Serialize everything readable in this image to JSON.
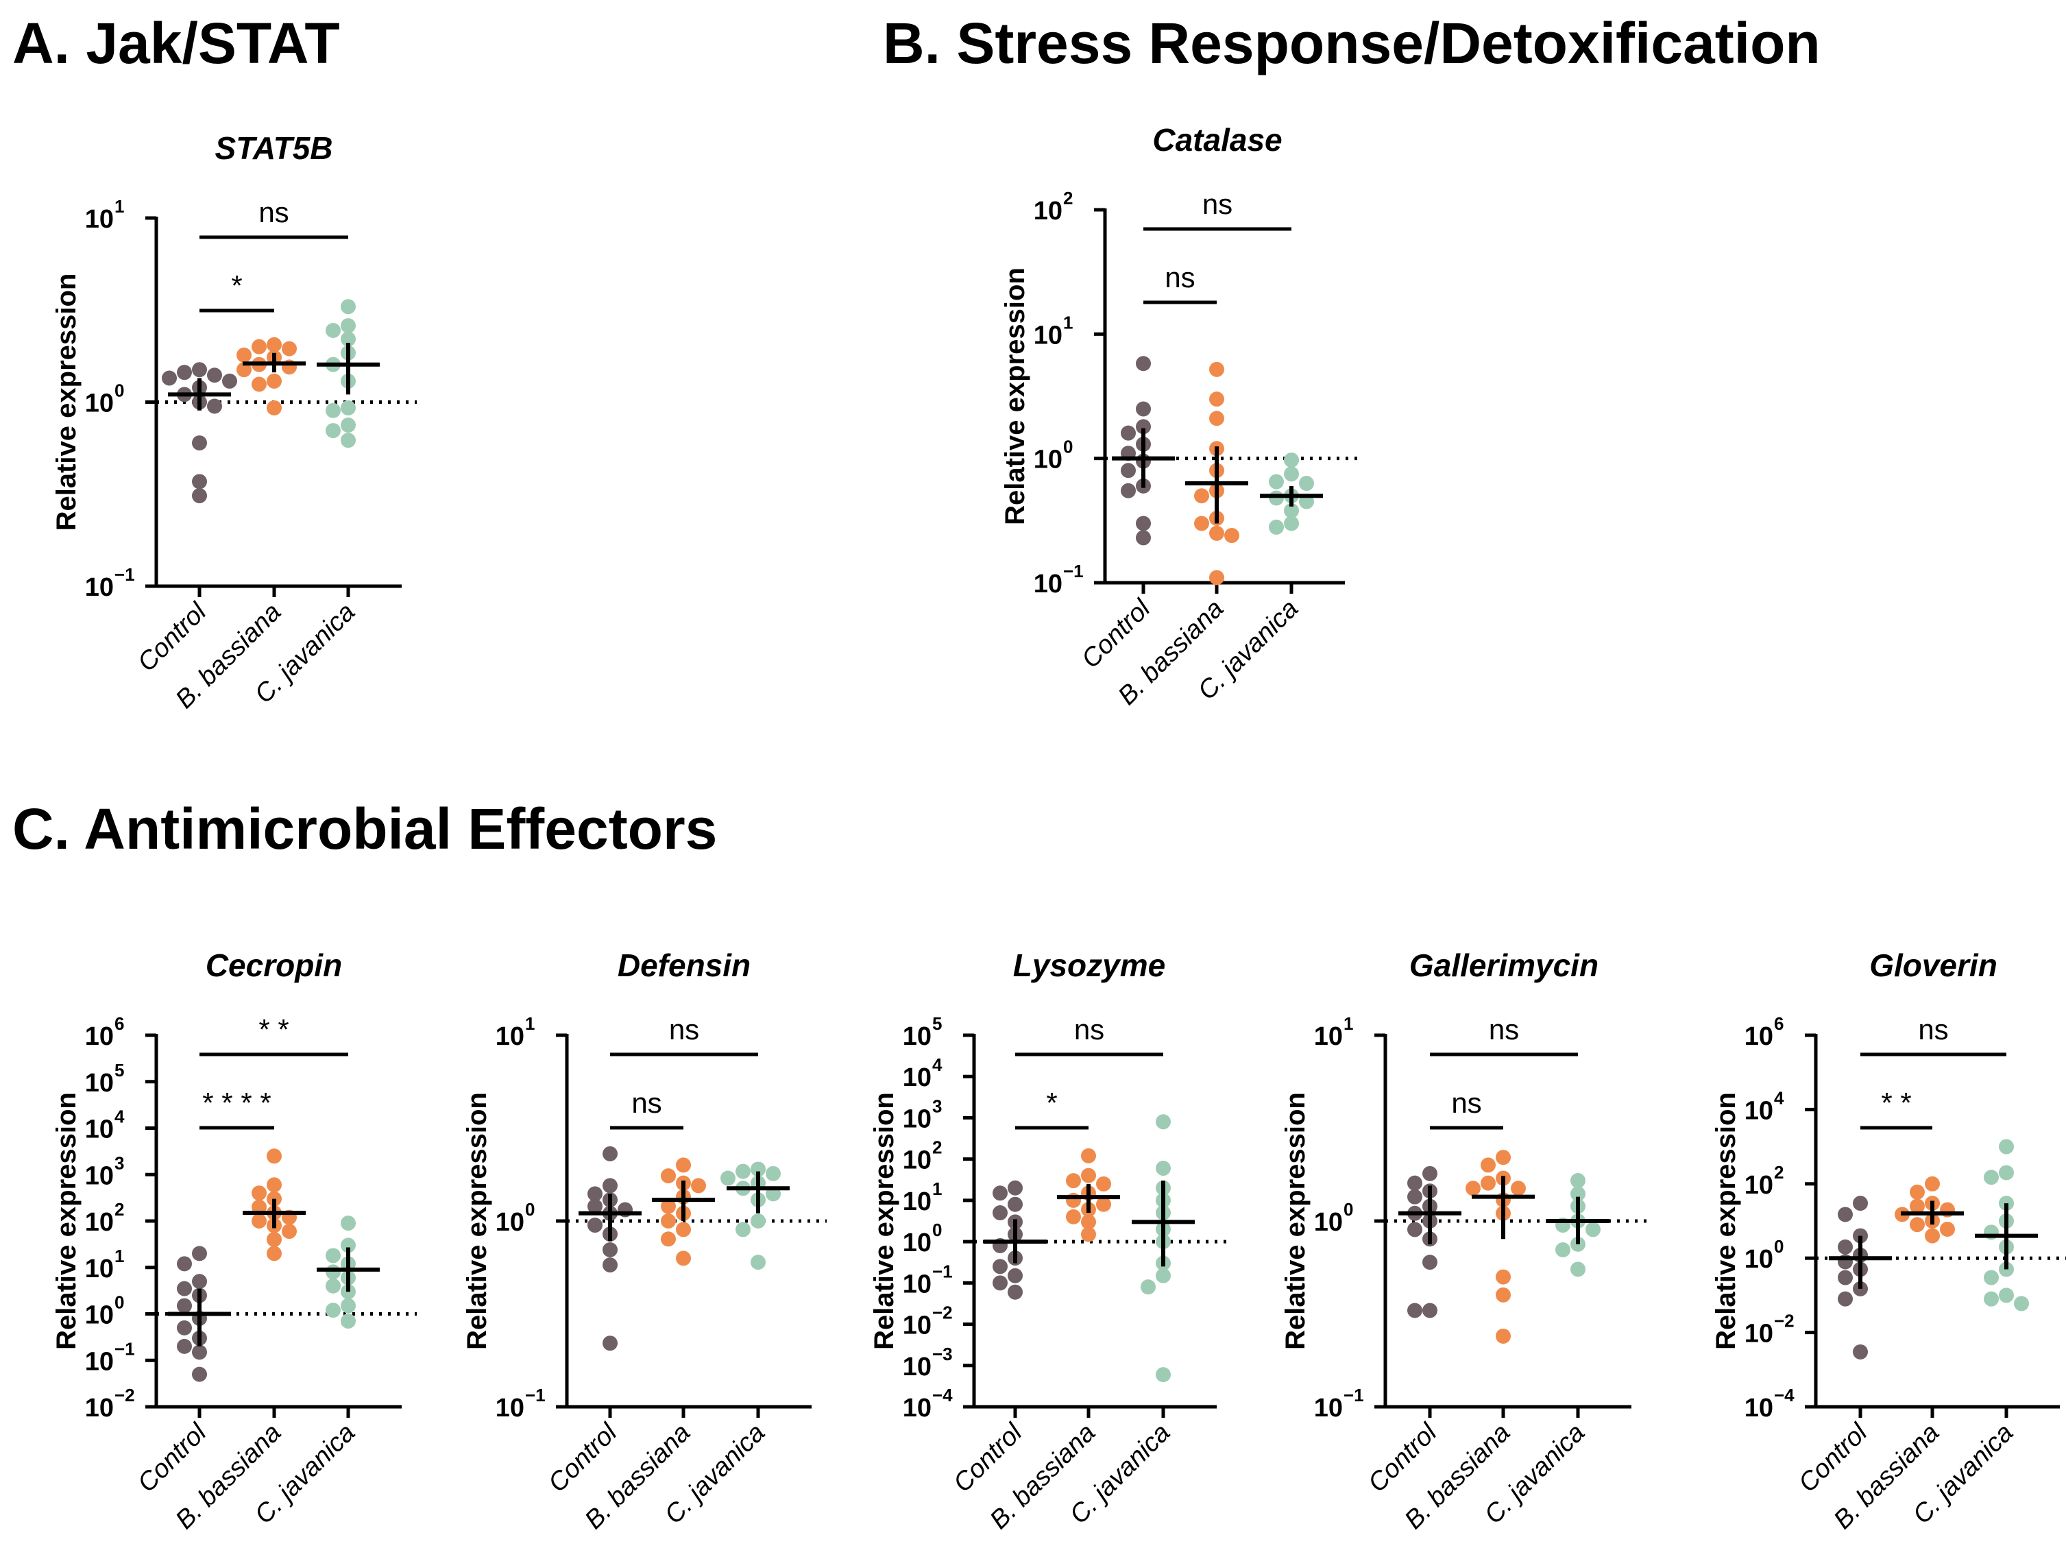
{
  "sections": {
    "a": "A. Jak/STAT",
    "b": "B. Stress Response/Detoxification",
    "c": "C.  Antimicrobial Effectors"
  },
  "colors": {
    "control": "#6e6065",
    "b_bassiana": "#f08a4b",
    "c_javanica": "#9ecbb4",
    "axis": "#000000"
  },
  "chart_data": [
    {
      "type": "scatter",
      "scale": "log",
      "title": "STAT5B",
      "ylabel": "Relative expression",
      "ylim_exp": [
        -1,
        1
      ],
      "categories": [
        "Control",
        "B. bassiana",
        "C. javanica"
      ],
      "tick_labels": [
        [
          "-1",
          "10",
          "−1"
        ],
        [
          "0",
          "10",
          "0"
        ],
        [
          "1",
          "10",
          "1"
        ]
      ],
      "groups": [
        {
          "points": [
            1.5,
            1.45,
            1.4,
            1.35,
            1.3,
            1.2,
            1.1,
            1.0,
            0.95,
            0.6,
            0.37,
            0.31
          ],
          "mean": 1.1,
          "err": [
            0.9,
            1.35
          ]
        },
        {
          "points": [
            2.05,
            2.0,
            1.95,
            1.8,
            1.75,
            1.6,
            1.55,
            1.5,
            1.3,
            1.25,
            0.93
          ],
          "mean": 1.62,
          "err": [
            1.45,
            1.85
          ]
        },
        {
          "points": [
            3.3,
            2.6,
            2.45,
            2.2,
            1.85,
            1.6,
            1.3,
            0.93,
            0.9,
            0.75,
            0.7,
            0.62
          ],
          "mean": 1.6,
          "err": [
            1.1,
            2.1
          ]
        }
      ],
      "comparisons": [
        {
          "label": "*",
          "from": 0,
          "to": 1,
          "level": 1
        },
        {
          "label": "ns",
          "from": 0,
          "to": 2,
          "level": 2
        }
      ]
    },
    {
      "type": "scatter",
      "scale": "log",
      "title": "Catalase",
      "ylabel": "Relative expression",
      "ylim_exp": [
        -1,
        2
      ],
      "categories": [
        "Control",
        "B. bassiana",
        "C. javanica"
      ],
      "tick_labels": [
        [
          "-1",
          "10",
          "−1"
        ],
        [
          "0",
          "10",
          "0"
        ],
        [
          "1",
          "10",
          "1"
        ],
        [
          "2",
          "10",
          "2"
        ]
      ],
      "groups": [
        {
          "points": [
            5.8,
            2.5,
            1.8,
            1.6,
            1.3,
            1.1,
            0.95,
            0.8,
            0.6,
            0.55,
            0.3,
            0.23
          ],
          "mean": 1.0,
          "err": [
            0.58,
            1.75
          ]
        },
        {
          "points": [
            5.2,
            3.0,
            2.1,
            1.2,
            0.8,
            0.55,
            0.5,
            0.33,
            0.3,
            0.25,
            0.24,
            0.11
          ],
          "mean": 0.63,
          "err": [
            0.3,
            1.25
          ]
        },
        {
          "points": [
            0.97,
            0.75,
            0.65,
            0.63,
            0.5,
            0.48,
            0.45,
            0.38,
            0.3,
            0.28
          ],
          "mean": 0.5,
          "err": [
            0.41,
            0.6
          ]
        }
      ],
      "comparisons": [
        {
          "label": "ns",
          "from": 0,
          "to": 1,
          "level": 1
        },
        {
          "label": "ns",
          "from": 0,
          "to": 2,
          "level": 2
        }
      ]
    },
    {
      "type": "scatter",
      "scale": "log",
      "title": "Cecropin",
      "ylabel": "Relative expression",
      "ylim_exp": [
        -2,
        6
      ],
      "categories": [
        "Control",
        "B. bassiana",
        "C. javanica"
      ],
      "tick_labels": [
        [
          "-2",
          "10",
          "−2"
        ],
        [
          "-1",
          "10",
          "−1"
        ],
        [
          "0",
          "10",
          "0"
        ],
        [
          "1",
          "10",
          "1"
        ],
        [
          "2",
          "10",
          "2"
        ],
        [
          "3",
          "10",
          "3"
        ],
        [
          "4",
          "10",
          "4"
        ],
        [
          "5",
          "10",
          "5"
        ],
        [
          "6",
          "10",
          "6"
        ]
      ],
      "groups": [
        {
          "points": [
            20,
            12,
            5,
            3.5,
            2.5,
            1.5,
            0.8,
            0.5,
            0.3,
            0.2,
            0.15,
            0.05
          ],
          "mean": 1.0,
          "err": [
            0.2,
            3.5
          ]
        },
        {
          "points": [
            2500,
            600,
            400,
            300,
            200,
            150,
            120,
            100,
            80,
            60,
            40,
            20
          ],
          "mean": 150,
          "err": [
            70,
            300
          ]
        },
        {
          "points": [
            90,
            30,
            18,
            12,
            8,
            6,
            4,
            3,
            1.5,
            1.2,
            0.7
          ],
          "mean": 9,
          "err": [
            3,
            27
          ]
        }
      ],
      "comparisons": [
        {
          "label": "* * * *",
          "from": 0,
          "to": 1,
          "level": 1
        },
        {
          "label": "* *",
          "from": 0,
          "to": 2,
          "level": 2
        }
      ]
    },
    {
      "type": "scatter",
      "scale": "log",
      "title": "Defensin",
      "ylabel": "Relative expression",
      "ylim_exp": [
        -1,
        1
      ],
      "categories": [
        "Control",
        "B. bassiana",
        "C. javanica"
      ],
      "tick_labels": [
        [
          "-1",
          "10",
          "−1"
        ],
        [
          "0",
          "10",
          "0"
        ],
        [
          "1",
          "10",
          "1"
        ]
      ],
      "groups": [
        {
          "points": [
            2.3,
            1.55,
            1.4,
            1.3,
            1.2,
            1.15,
            1.1,
            0.95,
            0.85,
            0.7,
            0.58,
            0.22
          ],
          "mean": 1.1,
          "err": [
            0.78,
            1.4
          ]
        },
        {
          "points": [
            2.0,
            1.75,
            1.6,
            1.55,
            1.35,
            1.2,
            1.1,
            1.0,
            0.9,
            0.8,
            0.63
          ],
          "mean": 1.3,
          "err": [
            1.0,
            1.65
          ]
        },
        {
          "points": [
            1.9,
            1.85,
            1.8,
            1.7,
            1.6,
            1.5,
            1.4,
            1.3,
            1.0,
            0.9,
            0.6
          ],
          "mean": 1.5,
          "err": [
            1.1,
            1.85
          ]
        }
      ],
      "comparisons": [
        {
          "label": "ns",
          "from": 0,
          "to": 1,
          "level": 1
        },
        {
          "label": "ns",
          "from": 0,
          "to": 2,
          "level": 2
        }
      ]
    },
    {
      "type": "scatter",
      "scale": "log",
      "title": "Lysozyme",
      "ylabel": "Relative expression",
      "ylim_exp": [
        -4,
        5
      ],
      "categories": [
        "Control",
        "B. bassiana",
        "C. javanica"
      ],
      "tick_labels": [
        [
          "-4",
          "10",
          "−4"
        ],
        [
          "-3",
          "10",
          "−3"
        ],
        [
          "-2",
          "10",
          "−2"
        ],
        [
          "-1",
          "10",
          "−1"
        ],
        [
          "0",
          "10",
          "0"
        ],
        [
          "1",
          "10",
          "1"
        ],
        [
          "2",
          "10",
          "2"
        ],
        [
          "3",
          "10",
          "3"
        ],
        [
          "4",
          "10",
          "4"
        ],
        [
          "5",
          "10",
          "5"
        ]
      ],
      "groups": [
        {
          "points": [
            20,
            15,
            8,
            5,
            3,
            1.5,
            0.8,
            0.4,
            0.25,
            0.15,
            0.1,
            0.06
          ],
          "mean": 1.0,
          "err": [
            0.3,
            3.5
          ]
        },
        {
          "points": [
            120,
            40,
            30,
            25,
            15,
            10,
            8,
            6,
            4,
            3,
            1.5
          ],
          "mean": 12,
          "err": [
            5,
            25
          ]
        },
        {
          "points": [
            800,
            60,
            20,
            10,
            5,
            2,
            1,
            0.3,
            0.15,
            0.08,
            0.0006
          ],
          "mean": 3,
          "err": [
            0.25,
            30
          ]
        }
      ],
      "comparisons": [
        {
          "label": "*",
          "from": 0,
          "to": 1,
          "level": 1
        },
        {
          "label": "ns",
          "from": 0,
          "to": 2,
          "level": 2
        }
      ]
    },
    {
      "type": "scatter",
      "scale": "log",
      "title": "Gallerimycin",
      "ylabel": "Relative expression",
      "ylim_exp": [
        -1,
        1
      ],
      "categories": [
        "Control",
        "B. bassiana",
        "C. javanica"
      ],
      "tick_labels": [
        [
          "-1",
          "10",
          "−1"
        ],
        [
          "0",
          "10",
          "0"
        ],
        [
          "1",
          "10",
          "1"
        ]
      ],
      "groups": [
        {
          "points": [
            1.8,
            1.6,
            1.45,
            1.35,
            1.2,
            1.1,
            1.0,
            0.9,
            0.8,
            0.6,
            0.33,
            0.33
          ],
          "mean": 1.1,
          "err": [
            0.75,
            1.55
          ]
        },
        {
          "points": [
            2.2,
            2.0,
            1.7,
            1.6,
            1.5,
            1.5,
            1.3,
            1.1,
            0.5,
            0.4,
            0.24
          ],
          "mean": 1.35,
          "err": [
            0.8,
            1.75
          ]
        },
        {
          "points": [
            1.65,
            1.4,
            1.2,
            1.0,
            0.95,
            0.9,
            0.75,
            0.7,
            0.55
          ],
          "mean": 1.0,
          "err": [
            0.75,
            1.35
          ]
        }
      ],
      "comparisons": [
        {
          "label": "ns",
          "from": 0,
          "to": 1,
          "level": 1
        },
        {
          "label": "ns",
          "from": 0,
          "to": 2,
          "level": 2
        }
      ]
    },
    {
      "type": "scatter",
      "scale": "log",
      "title": "Gloverin",
      "ylabel": "Relative expression",
      "ylim_exp": [
        -4,
        6
      ],
      "ytick_step": 2,
      "categories": [
        "Control",
        "B. bassiana",
        "C. javanica"
      ],
      "tick_labels": [
        [
          "-4",
          "10",
          "−4"
        ],
        [
          "-2",
          "10",
          "−2"
        ],
        [
          "0",
          "10",
          "0"
        ],
        [
          "2",
          "10",
          "2"
        ],
        [
          "4",
          "10",
          "4"
        ],
        [
          "6",
          "10",
          "6"
        ]
      ],
      "groups": [
        {
          "points": [
            30,
            15,
            4,
            2,
            1.2,
            0.8,
            0.5,
            0.3,
            0.15,
            0.08,
            0.003
          ],
          "mean": 1.0,
          "err": [
            0.15,
            4
          ]
        },
        {
          "points": [
            100,
            60,
            30,
            25,
            20,
            15,
            10,
            8,
            6,
            4
          ],
          "mean": 16,
          "err": [
            8,
            35
          ]
        },
        {
          "points": [
            1000,
            200,
            150,
            30,
            10,
            5,
            2,
            0.5,
            0.3,
            0.1,
            0.08,
            0.06
          ],
          "mean": 4,
          "err": [
            0.5,
            30
          ]
        }
      ],
      "comparisons": [
        {
          "label": "* *",
          "from": 0,
          "to": 1,
          "level": 1
        },
        {
          "label": "ns",
          "from": 0,
          "to": 2,
          "level": 2
        }
      ]
    }
  ]
}
